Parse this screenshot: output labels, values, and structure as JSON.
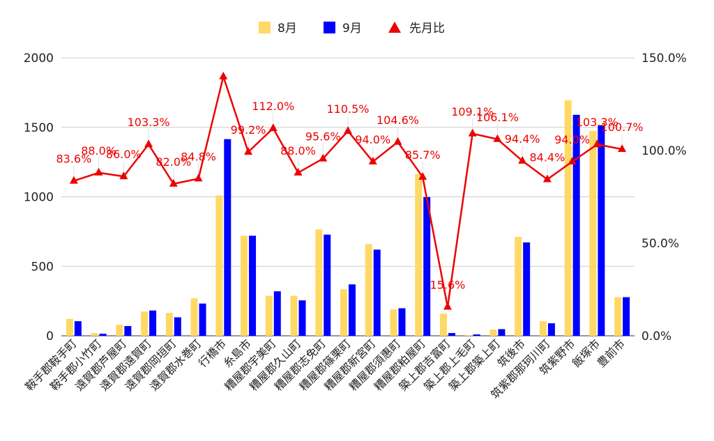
{
  "chart_data": {
    "type": "bar",
    "categories": [
      "鞍手郡鞍手町",
      "鞍手郡小竹町",
      "遠賀郡芦屋町",
      "遠賀郡遠賀町",
      "遠賀郡岡垣町",
      "遠賀郡水巻町",
      "行橋市",
      "糸島市",
      "糟屋郡宇美町",
      "糟屋郡久山町",
      "糟屋郡志免町",
      "糟屋郡篠栗町",
      "糟屋郡新宮町",
      "糟屋郡須惠町",
      "糟屋郡粕屋町",
      "築上郡吉富町",
      "築上郡上毛町",
      "築上郡築上町",
      "筑後市",
      "筑紫郡那珂川町",
      "筑紫野市",
      "飯塚市",
      "豊前市"
    ],
    "series": [
      {
        "name": "8月",
        "type": "bar",
        "axis": "left",
        "color": "#FFD966",
        "values": [
          122,
          20,
          80,
          175,
          165,
          270,
          1010,
          720,
          288,
          288,
          765,
          335,
          660,
          190,
          1165,
          160,
          5,
          45,
          712,
          105,
          1695,
          1475,
          278
        ]
      },
      {
        "name": "9月",
        "type": "bar",
        "axis": "left",
        "color": "#0000FF",
        "values": [
          105,
          15,
          70,
          182,
          133,
          232,
          1415,
          720,
          320,
          255,
          728,
          370,
          620,
          198,
          998,
          20,
          10,
          48,
          672,
          90,
          1590,
          1515,
          278
        ]
      },
      {
        "name": "先月比",
        "type": "line",
        "axis": "right",
        "color": "#EE0000",
        "values": [
          83.6,
          88.0,
          86.0,
          103.3,
          82.0,
          84.8,
          139.9,
          99.2,
          112.0,
          88.0,
          95.6,
          110.5,
          94.0,
          104.6,
          85.7,
          15.6,
          109.1,
          106.1,
          94.4,
          84.4,
          94.0,
          103.3,
          100.7
        ],
        "labels": [
          "83.6%",
          "88.0%",
          "86.0%",
          "103.3%",
          "82.0%",
          "84.8%",
          "",
          "99.2%",
          "112.0%",
          "88.0%",
          "95.6%",
          "110.5%",
          "94.0%",
          "104.6%",
          "85.7%",
          "15.6%",
          "109.1%",
          "106.1%",
          "94.4%",
          "84.4%",
          "94.0%",
          "103.3%",
          "100.7%"
        ]
      }
    ],
    "y_left": {
      "min": 0,
      "max": 2000,
      "ticks": [
        "0",
        "500",
        "1000",
        "1500",
        "2000"
      ]
    },
    "y_right": {
      "min": 0,
      "max": 150,
      "ticks": [
        "0.0%",
        "50.0%",
        "100.0%",
        "150.0%"
      ]
    },
    "grid": true,
    "legend": {
      "position": "top",
      "items": [
        "8月",
        "9月",
        "先月比"
      ]
    }
  }
}
